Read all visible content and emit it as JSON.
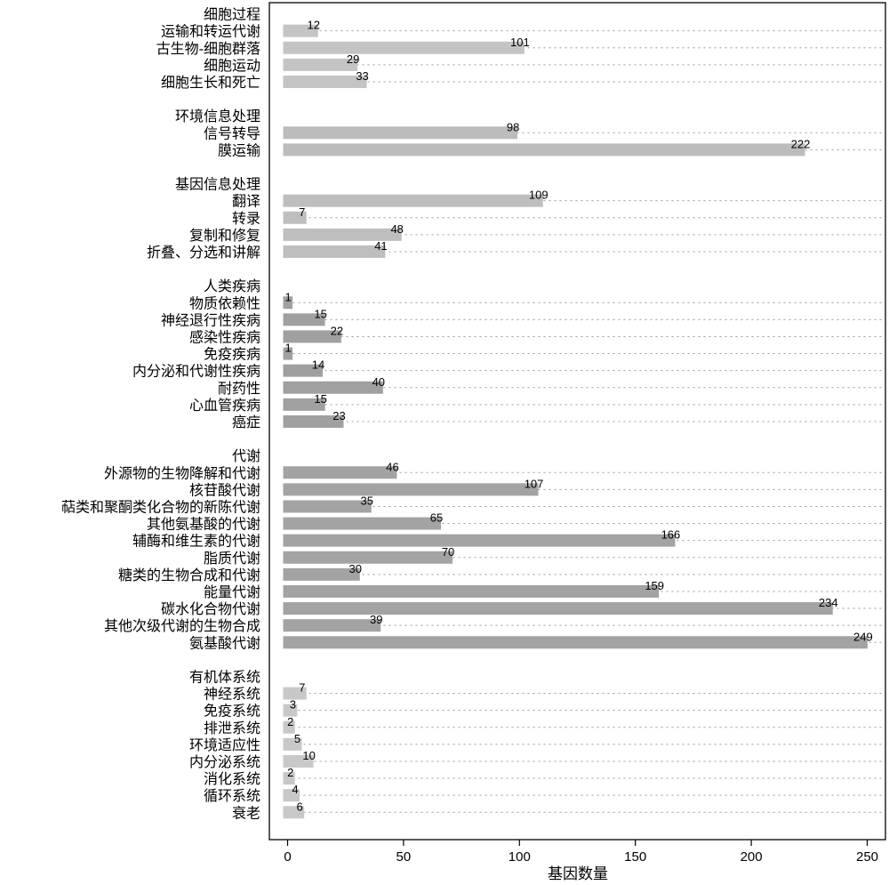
{
  "chart_data": {
    "type": "bar",
    "orientation": "horizontal",
    "xlabel": "基因数量",
    "xlim": [
      0,
      255
    ],
    "xticks": [
      0,
      50,
      100,
      150,
      200,
      250
    ],
    "grid": "dotted horizontal lines per category",
    "groups": [
      {
        "name": "细胞过程",
        "color": "#c4c4c4",
        "items": [
          {
            "label": "运输和转运代谢",
            "value": 12
          },
          {
            "label": "古生物-细胞群落",
            "value": 101
          },
          {
            "label": "细胞运动",
            "value": 29
          },
          {
            "label": "细胞生长和死亡",
            "value": 33
          }
        ]
      },
      {
        "name": "环境信息处理",
        "color": "#bcbcbc",
        "items": [
          {
            "label": "信号转导",
            "value": 98
          },
          {
            "label": "膜运输",
            "value": 222
          }
        ]
      },
      {
        "name": "基因信息处理",
        "color": "#bebebe",
        "items": [
          {
            "label": "翻译",
            "value": 109
          },
          {
            "label": "转录",
            "value": 7
          },
          {
            "label": "复制和修复",
            "value": 48
          },
          {
            "label": "折叠、分选和讲解",
            "value": 41
          }
        ]
      },
      {
        "name": "人类疾病",
        "color": "#a0a0a0",
        "items": [
          {
            "label": "物质依赖性",
            "value": 1
          },
          {
            "label": "神经退行性疾病",
            "value": 15
          },
          {
            "label": "感染性疾病",
            "value": 22
          },
          {
            "label": "免疫疾病",
            "value": 1
          },
          {
            "label": "内分泌和代谢性疾病",
            "value": 14
          },
          {
            "label": "耐药性",
            "value": 40
          },
          {
            "label": "心血管疾病",
            "value": 15
          },
          {
            "label": "癌症",
            "value": 23
          }
        ]
      },
      {
        "name": "代谢",
        "color": "#a3a3a3",
        "items": [
          {
            "label": "外源物的生物降解和代谢",
            "value": 46
          },
          {
            "label": "核苷酸代谢",
            "value": 107
          },
          {
            "label": "萜类和聚酮类化合物的新陈代谢",
            "value": 35
          },
          {
            "label": "其他氨基酸的代谢",
            "value": 65
          },
          {
            "label": "辅酶和维生素的代谢",
            "value": 166
          },
          {
            "label": "脂质代谢",
            "value": 70
          },
          {
            "label": "糖类的生物合成和代谢",
            "value": 30
          },
          {
            "label": "能量代谢",
            "value": 159
          },
          {
            "label": "碳水化合物代谢",
            "value": 234
          },
          {
            "label": "其他次级代谢的生物合成",
            "value": 39
          },
          {
            "label": "氨基酸代谢",
            "value": 249
          }
        ]
      },
      {
        "name": "有机体系统",
        "color": "#c8c8c8",
        "items": [
          {
            "label": "神经系统",
            "value": 7
          },
          {
            "label": "免疫系统",
            "value": 3
          },
          {
            "label": "排泄系统",
            "value": 2
          },
          {
            "label": "环境适应性",
            "value": 5
          },
          {
            "label": "内分泌系统",
            "value": 10
          },
          {
            "label": "消化系统",
            "value": 2
          },
          {
            "label": "循环系统",
            "value": 4
          },
          {
            "label": "衰老",
            "value": 6
          }
        ]
      }
    ]
  }
}
